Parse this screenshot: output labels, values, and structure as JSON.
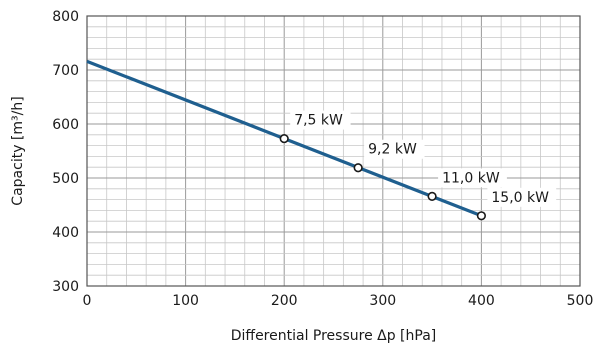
{
  "chart_data": {
    "type": "line",
    "title": "",
    "xlabel": "Differential Pressure Δp [hPa]",
    "ylabel": "Capacity [m³/h]",
    "xlim": [
      0,
      500
    ],
    "ylim": [
      300,
      800
    ],
    "x_major_ticks": [
      0,
      100,
      200,
      300,
      400,
      500
    ],
    "y_major_ticks": [
      300,
      400,
      500,
      600,
      700,
      800
    ],
    "x_minor_step": 20,
    "y_minor_step": 20,
    "grid": true,
    "series": [
      {
        "color": "#1f5f8f",
        "x": [
          0,
          400
        ],
        "y": [
          716,
          430
        ]
      }
    ],
    "points": [
      {
        "x": 200,
        "y": 573,
        "label": "7,5 kW"
      },
      {
        "x": 275,
        "y": 519,
        "label": "9,2 kW"
      },
      {
        "x": 350,
        "y": 466,
        "label": "11,0 kW"
      },
      {
        "x": 400,
        "y": 430,
        "label": "15,0 kW"
      }
    ]
  }
}
